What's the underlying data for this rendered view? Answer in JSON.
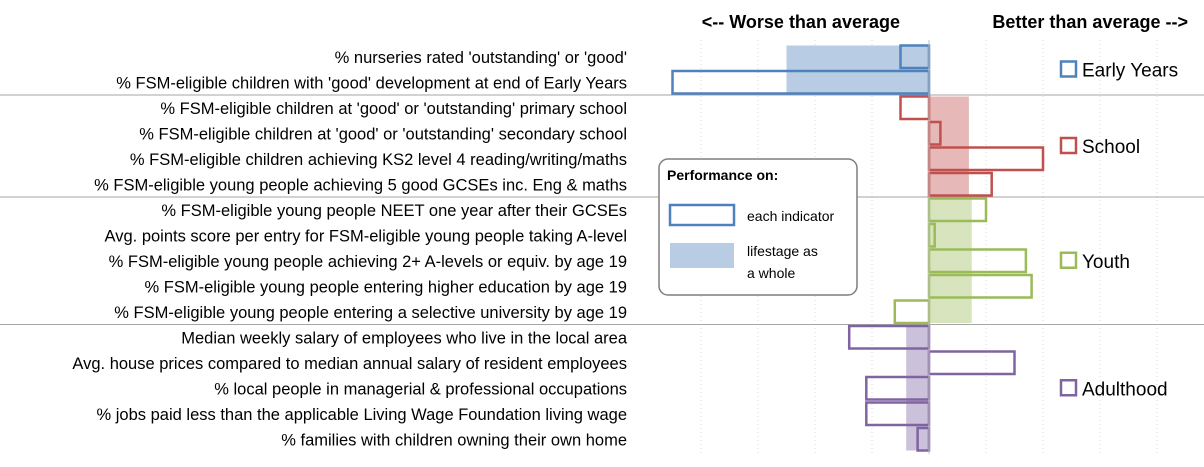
{
  "chart_data": {
    "type": "bar",
    "title": "",
    "xlabel": "",
    "ylabel": "",
    "xlim": [
      -46,
      54
    ],
    "grid": true,
    "header_left": "<-- Worse than average",
    "header_right": "Better than average -->",
    "legend": {
      "title": "Performance on:",
      "items": [
        {
          "label": "each indicator",
          "style": "outline"
        },
        {
          "label_lines": [
            "lifestage as",
            "a whole"
          ],
          "style": "filled"
        }
      ]
    },
    "groups": [
      {
        "name": "Early Years",
        "color": "#4F81BD",
        "fill": "#B8CCE4",
        "overall": -25,
        "indicators": [
          {
            "label": "% nurseries rated 'outstanding' or 'good'",
            "value": -5
          },
          {
            "label": "% FSM-eligible children with 'good' development at end of Early Years",
            "value": -45
          }
        ]
      },
      {
        "name": "School",
        "color": "#C0504D",
        "fill": "#E6B9B8",
        "overall": 7,
        "indicators": [
          {
            "label": "% FSM-eligible children at 'good' or 'outstanding' primary school",
            "value": -5
          },
          {
            "label": "% FSM-eligible children at 'good' or 'outstanding' secondary school",
            "value": 2
          },
          {
            "label": "% FSM-eligible children achieving KS2 level 4 reading/writing/maths",
            "value": 20
          },
          {
            "label": "% FSM-eligible young people achieving 5 good GCSEs inc. Eng & maths",
            "value": 11
          }
        ]
      },
      {
        "name": "Youth",
        "color": "#9BBB59",
        "fill": "#D7E4BD",
        "overall": 7.5,
        "indicators": [
          {
            "label": "% FSM-eligible young people NEET one year after their GCSEs",
            "value": 10
          },
          {
            "label": "Avg. points score per entry for FSM-eligible young people taking A-level",
            "value": 1
          },
          {
            "label": "% FSM-eligible young people achieving 2+ A-levels or equiv. by age 19",
            "value": 17
          },
          {
            "label": "% FSM-eligible young people entering higher education by age 19",
            "value": 18
          },
          {
            "label": "% FSM-eligible young people entering a selective university by age 19",
            "value": -6
          }
        ]
      },
      {
        "name": "Adulthood",
        "color": "#8064A2",
        "fill": "#CCC1DA",
        "overall": -4,
        "indicators": [
          {
            "label": "Median weekly salary  of employees who live in the local area",
            "value": -14
          },
          {
            "label": "Avg. house prices compared to median annual salary of resident employees",
            "value": 15
          },
          {
            "label": "% local people in managerial & professional occupations",
            "value": -11
          },
          {
            "label": "% jobs paid less than the applicable Living Wage Foundation living wage",
            "value": -11
          },
          {
            "label": "% families with children owning their own home",
            "value": -2
          }
        ]
      }
    ]
  }
}
